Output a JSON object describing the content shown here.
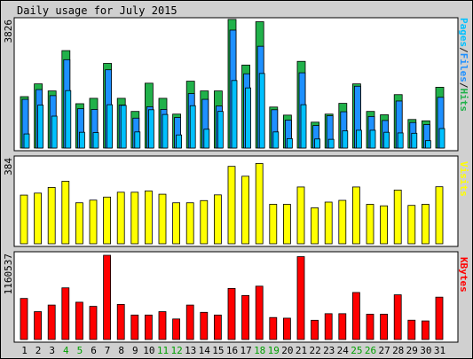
{
  "chart_data": [
    {
      "type": "bar",
      "title": "Daily usage for July 2015",
      "panel": "hits-files-pages",
      "ylabel_parts": [
        {
          "text": "Pages",
          "color": "#00c0ff"
        },
        {
          "text": "/",
          "color": "#1a1a1a"
        },
        {
          "text": "Files",
          "color": "#1e90ff"
        },
        {
          "text": "/",
          "color": "#1a1a1a"
        },
        {
          "text": "Hits",
          "color": "#21b14a"
        }
      ],
      "ymax_label": "3826",
      "ylim": [
        0,
        3826
      ],
      "categories": [
        "1",
        "2",
        "3",
        "4",
        "5",
        "6",
        "7",
        "8",
        "9",
        "10",
        "11",
        "12",
        "13",
        "14",
        "15",
        "16",
        "17",
        "18",
        "19",
        "20",
        "21",
        "22",
        "23",
        "24",
        "25",
        "26",
        "27",
        "28",
        "29",
        "30",
        "31"
      ],
      "series": [
        {
          "name": "Hits",
          "color": "#21b14a",
          "values": [
            1530,
            1910,
            1700,
            2900,
            1320,
            1480,
            2520,
            1480,
            1090,
            1930,
            1480,
            1010,
            1990,
            1700,
            1700,
            3830,
            2470,
            3760,
            1220,
            980,
            2580,
            770,
            1010,
            1330,
            1910,
            1090,
            990,
            1590,
            850,
            810,
            1810
          ]
        },
        {
          "name": "Files",
          "color": "#1e90ff",
          "values": [
            1450,
            1740,
            1560,
            2630,
            1170,
            1150,
            2330,
            1280,
            890,
            1230,
            1150,
            910,
            1620,
            1450,
            1250,
            3510,
            2210,
            3030,
            1140,
            830,
            2240,
            670,
            960,
            1080,
            1840,
            940,
            820,
            1400,
            760,
            700,
            1510
          ]
        },
        {
          "name": "Pages",
          "color": "#00c0ff",
          "values": [
            420,
            1280,
            950,
            1710,
            470,
            460,
            1290,
            1270,
            480,
            1140,
            1000,
            390,
            1260,
            560,
            1090,
            2010,
            1790,
            2220,
            480,
            280,
            1290,
            270,
            260,
            510,
            530,
            530,
            470,
            450,
            440,
            220,
            580
          ]
        }
      ]
    },
    {
      "type": "bar",
      "panel": "visits",
      "ylabel": "Visits",
      "ylabel_color": "#ffff00",
      "ymax_label": "384",
      "ylim": [
        0,
        384
      ],
      "categories": [
        "1",
        "2",
        "3",
        "4",
        "5",
        "6",
        "7",
        "8",
        "9",
        "10",
        "11",
        "12",
        "13",
        "14",
        "15",
        "16",
        "17",
        "18",
        "19",
        "20",
        "21",
        "22",
        "23",
        "24",
        "25",
        "26",
        "27",
        "28",
        "29",
        "30",
        "31"
      ],
      "series": [
        {
          "name": "Visits",
          "color": "#ffff00",
          "values": [
            222,
            231,
            257,
            285,
            187,
            199,
            213,
            235,
            235,
            241,
            226,
            187,
            187,
            197,
            223,
            353,
            308,
            366,
            180,
            180,
            259,
            164,
            190,
            198,
            259,
            180,
            173,
            245,
            175,
            180,
            260
          ]
        }
      ]
    },
    {
      "type": "bar",
      "panel": "kbytes",
      "ylabel": "KBytes",
      "ylabel_color": "#ff0000",
      "ymax_label": "1160537",
      "ylim": [
        0,
        1160537
      ],
      "categories": [
        "1",
        "2",
        "3",
        "4",
        "5",
        "6",
        "7",
        "8",
        "9",
        "10",
        "11",
        "12",
        "13",
        "14",
        "15",
        "16",
        "17",
        "18",
        "19",
        "20",
        "21",
        "22",
        "23",
        "24",
        "25",
        "26",
        "27",
        "28",
        "29",
        "30",
        "31"
      ],
      "series": [
        {
          "name": "KBytes",
          "color": "#ff0000",
          "values": [
            566000,
            384000,
            475000,
            712000,
            514000,
            457000,
            1160537,
            484000,
            337000,
            337000,
            384000,
            283000,
            475000,
            375000,
            337000,
            704000,
            607000,
            735000,
            303000,
            294000,
            1142000,
            265000,
            356000,
            356000,
            648000,
            349000,
            349000,
            616000,
            266000,
            256000,
            584000
          ]
        }
      ]
    }
  ],
  "x_tick_colors": {
    "weekday": "#000000",
    "weekend": "#00a000"
  },
  "weekend_days": [
    "4",
    "5",
    "11",
    "12",
    "18",
    "19",
    "25",
    "26"
  ],
  "colors": {
    "frame_bg": "#d0d0d0",
    "plot_bg": "#ffffff",
    "outline": "#000000"
  }
}
